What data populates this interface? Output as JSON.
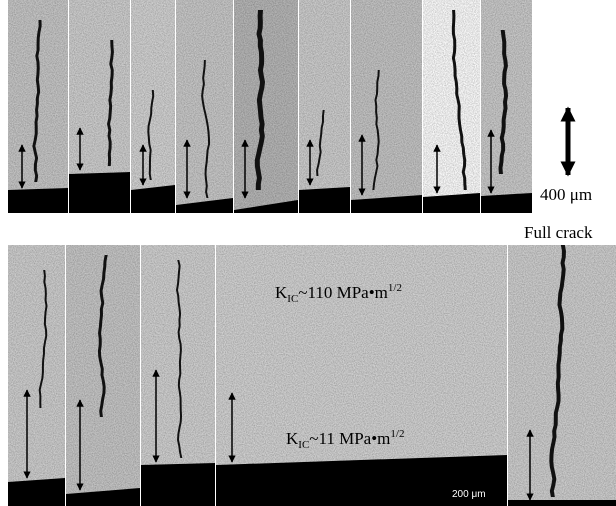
{
  "labels": {
    "scale_top": "400 μm",
    "full_crack": "Full crack",
    "kic_high": {
      "k": "K",
      "sub": "IC",
      "value": "~110 MPa•m",
      "sup": "1/2"
    },
    "kic_low": {
      "k": "K",
      "sub": "IC",
      "value": "~11 MPa•m",
      "sup": "1/2"
    },
    "scale_bar": "200 μm"
  }
}
